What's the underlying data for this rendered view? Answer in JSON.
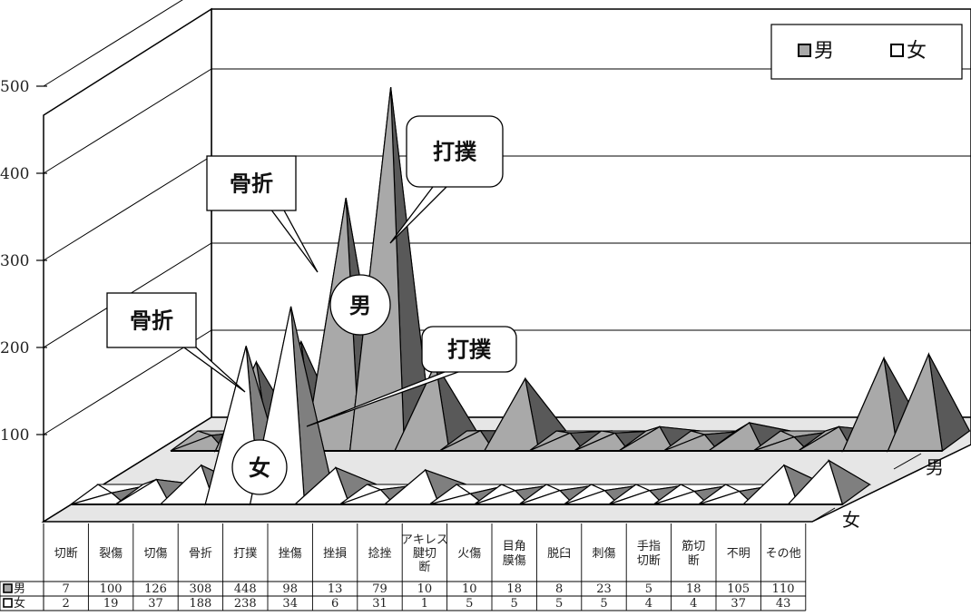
{
  "chart_data": {
    "type": "area",
    "style": "3d-pyramid",
    "categories": [
      "切断",
      "裂傷",
      "切傷",
      "骨折",
      "打撲",
      "挫傷",
      "挫損",
      "捻挫",
      "アキレス腱切断",
      "火傷",
      "目角膜傷",
      "脱臼",
      "刺傷",
      "手指切断",
      "筋切断",
      "不明",
      "その他"
    ],
    "category_lines": [
      [
        "切断"
      ],
      [
        "裂傷"
      ],
      [
        "切傷"
      ],
      [
        "骨折"
      ],
      [
        "打撲"
      ],
      [
        "挫傷"
      ],
      [
        "挫損"
      ],
      [
        "捻挫"
      ],
      [
        "アキレス",
        "腱切",
        "断"
      ],
      [
        "火傷"
      ],
      [
        "目角",
        "膜傷"
      ],
      [
        "脱臼"
      ],
      [
        "刺傷"
      ],
      [
        "手指",
        "切断"
      ],
      [
        "筋切",
        "断"
      ],
      [
        "不明"
      ],
      [
        "その他"
      ]
    ],
    "series": [
      {
        "name": "男",
        "legend_label": "■男",
        "color": "#a9a9a9",
        "dark": "#595959",
        "values": [
          7,
          100,
          126,
          308,
          448,
          98,
          13,
          79,
          10,
          10,
          18,
          8,
          23,
          5,
          18,
          105,
          110
        ],
        "display": [
          "7",
          "100",
          "126",
          "308",
          "448",
          "98",
          "13",
          "79",
          "10",
          "10",
          "18",
          "8",
          "23",
          "5",
          "18",
          "105",
          "110"
        ]
      },
      {
        "name": "女",
        "legend_label": "□女",
        "color": "#ffffff",
        "dark": "#7f7f7f",
        "values": [
          2,
          19,
          37,
          188,
          238,
          34,
          6,
          31,
          1,
          5,
          5,
          5,
          5,
          4,
          4,
          37,
          43
        ],
        "display": [
          "2",
          "19",
          "37",
          "188",
          "238",
          "34",
          "6",
          "31",
          "1",
          "5",
          "5",
          "5",
          "5",
          "4",
          "4",
          "37",
          "43"
        ]
      }
    ],
    "yticks": [
      "100",
      "200",
      "300",
      "400",
      "500"
    ],
    "ytick_values": [
      100,
      200,
      300,
      400,
      500
    ],
    "ylim": [
      0,
      500
    ],
    "grid": true,
    "legend": {
      "placement": "top-right",
      "items": [
        "男",
        "女"
      ]
    },
    "depth_labels": [
      "男",
      "女"
    ],
    "annotations": {
      "male_fracture": "骨折",
      "male_bruise": "打撲",
      "male_series": "男",
      "female_fracture": "骨折",
      "female_bruise": "打撲",
      "female_series": "女"
    }
  }
}
